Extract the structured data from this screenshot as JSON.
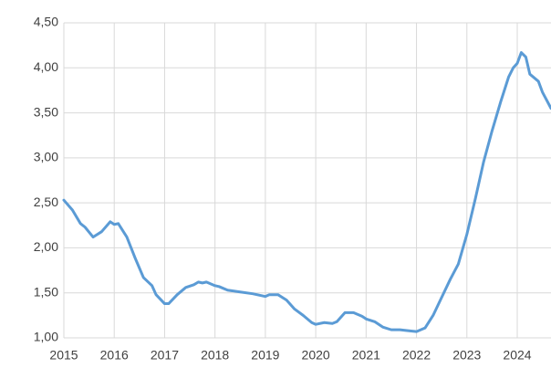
{
  "chart_data": {
    "type": "line",
    "x": [
      2015.0,
      2015.17,
      2015.33,
      2015.42,
      2015.58,
      2015.75,
      2015.92,
      2016.0,
      2016.08,
      2016.25,
      2016.42,
      2016.58,
      2016.75,
      2016.83,
      2017.0,
      2017.08,
      2017.25,
      2017.42,
      2017.58,
      2017.67,
      2017.75,
      2017.83,
      2018.0,
      2018.08,
      2018.25,
      2018.5,
      2018.75,
      2019.0,
      2019.08,
      2019.25,
      2019.42,
      2019.58,
      2019.75,
      2019.92,
      2020.0,
      2020.17,
      2020.33,
      2020.42,
      2020.58,
      2020.75,
      2020.92,
      2021.0,
      2021.17,
      2021.33,
      2021.5,
      2021.67,
      2021.83,
      2022.0,
      2022.17,
      2022.33,
      2022.5,
      2022.67,
      2022.83,
      2023.0,
      2023.17,
      2023.33,
      2023.5,
      2023.67,
      2023.83,
      2023.92,
      2024.0,
      2024.08,
      2024.17,
      2024.25,
      2024.42,
      2024.5,
      2024.67
    ],
    "series": [
      {
        "color": "#5b9bd5",
        "values": [
          2.53,
          2.42,
          2.27,
          2.23,
          2.12,
          2.18,
          2.29,
          2.26,
          2.27,
          2.12,
          1.88,
          1.67,
          1.58,
          1.48,
          1.38,
          1.38,
          1.48,
          1.56,
          1.59,
          1.62,
          1.61,
          1.62,
          1.58,
          1.57,
          1.53,
          1.51,
          1.49,
          1.46,
          1.48,
          1.48,
          1.42,
          1.32,
          1.25,
          1.17,
          1.15,
          1.17,
          1.16,
          1.18,
          1.28,
          1.28,
          1.24,
          1.21,
          1.18,
          1.12,
          1.09,
          1.09,
          1.08,
          1.07,
          1.11,
          1.25,
          1.45,
          1.65,
          1.82,
          2.15,
          2.55,
          2.95,
          3.3,
          3.62,
          3.9,
          4.0,
          4.05,
          4.17,
          4.12,
          3.93,
          3.85,
          3.73,
          3.55
        ]
      }
    ],
    "xlim": [
      2015,
      2024.67
    ],
    "xticks": [
      2015,
      2016,
      2017,
      2018,
      2019,
      2020,
      2021,
      2022,
      2023,
      2024
    ],
    "ylim": [
      1,
      4.5
    ],
    "yticks": [
      {
        "value": 1,
        "label": "1,00"
      },
      {
        "value": 1.5,
        "label": "1,50"
      },
      {
        "value": 2,
        "label": "2,00"
      },
      {
        "value": 2.5,
        "label": "2,50"
      },
      {
        "value": 3,
        "label": "3,00"
      },
      {
        "value": 3.5,
        "label": "3,50"
      },
      {
        "value": 4,
        "label": "4,00"
      },
      {
        "value": 4.5,
        "label": "4,50"
      }
    ],
    "grid": true
  }
}
